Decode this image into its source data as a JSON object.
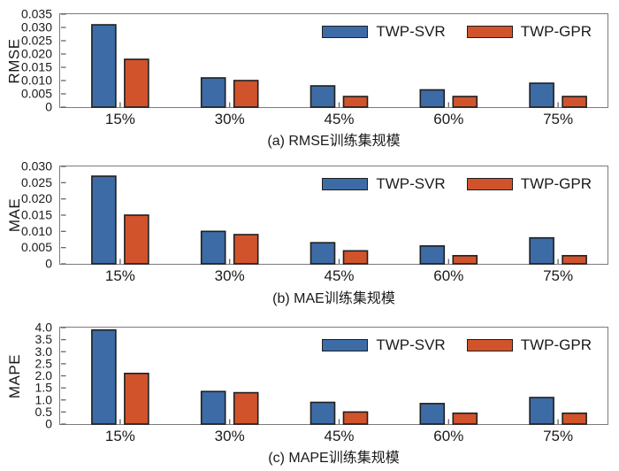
{
  "colors": {
    "svr_fill": "#3D6BA5",
    "gpr_fill": "#D1532C",
    "bar_border": "#1F1F1F",
    "axis_box": "#7B7B7B",
    "tick": "#666666",
    "text": "#1A1A1A"
  },
  "legend": {
    "svr": "TWP-SVR",
    "gpr": "TWP-GPR"
  },
  "chart_data": [
    {
      "type": "bar",
      "ylabel": "RMSE",
      "caption": "(a) RMSE训练集规模",
      "categories": [
        "15%",
        "30%",
        "45%",
        "60%",
        "75%"
      ],
      "ylim": [
        0,
        0.035
      ],
      "yticks": [
        0,
        0.005,
        0.01,
        0.015,
        0.02,
        0.025,
        0.03,
        0.035
      ],
      "ytick_labels": [
        "0",
        "0.005",
        "0.010",
        "0.015",
        "0.020",
        "0.025",
        "0.030",
        "0.035"
      ],
      "grid": false,
      "legend_position": "top-right-inside",
      "series": [
        {
          "name": "TWP-SVR",
          "values": [
            0.031,
            0.011,
            0.008,
            0.0065,
            0.009
          ]
        },
        {
          "name": "TWP-GPR",
          "values": [
            0.018,
            0.01,
            0.004,
            0.004,
            0.004
          ]
        }
      ]
    },
    {
      "type": "bar",
      "ylabel": "MAE",
      "caption": "(b) MAE训练集规模",
      "categories": [
        "15%",
        "30%",
        "45%",
        "60%",
        "75%"
      ],
      "ylim": [
        0,
        0.03
      ],
      "yticks": [
        0,
        0.005,
        0.01,
        0.015,
        0.02,
        0.025,
        0.03
      ],
      "ytick_labels": [
        "0",
        "0.005",
        "0.010",
        "0.015",
        "0.020",
        "0.025",
        "0.030"
      ],
      "grid": false,
      "legend_position": "top-right-inside",
      "series": [
        {
          "name": "TWP-SVR",
          "values": [
            0.027,
            0.01,
            0.0065,
            0.0055,
            0.008
          ]
        },
        {
          "name": "TWP-GPR",
          "values": [
            0.015,
            0.009,
            0.004,
            0.0025,
            0.0025
          ]
        }
      ]
    },
    {
      "type": "bar",
      "ylabel": "MAPE",
      "caption": "(c) MAPE训练集规模",
      "categories": [
        "15%",
        "30%",
        "45%",
        "60%",
        "75%"
      ],
      "ylim": [
        0,
        4.0
      ],
      "yticks": [
        0,
        0.5,
        1.0,
        1.5,
        2.0,
        2.5,
        3.0,
        3.5,
        4.0
      ],
      "ytick_labels": [
        "0",
        "0.5",
        "1.0",
        "1.5",
        "2.0",
        "2.5",
        "3.0",
        "3.5",
        "4.0"
      ],
      "grid": false,
      "legend_position": "top-right-inside",
      "series": [
        {
          "name": "TWP-SVR",
          "values": [
            3.9,
            1.35,
            0.9,
            0.85,
            1.1
          ]
        },
        {
          "name": "TWP-GPR",
          "values": [
            2.1,
            1.3,
            0.5,
            0.45,
            0.45
          ]
        }
      ]
    }
  ]
}
